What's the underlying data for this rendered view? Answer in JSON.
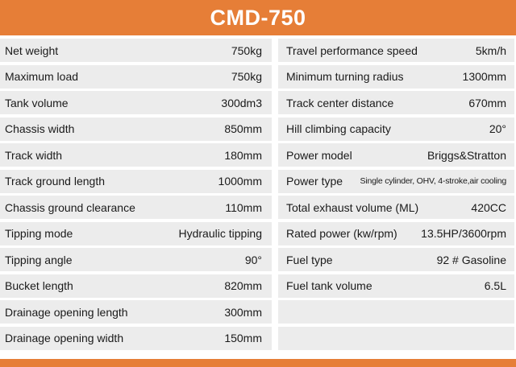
{
  "title": "CMD-750",
  "left_specs": [
    {
      "label": "Net weight",
      "value": "750kg"
    },
    {
      "label": "Maximum load",
      "value": "750kg"
    },
    {
      "label": "Tank volume",
      "value": "300dm3"
    },
    {
      "label": "Chassis width",
      "value": "850mm"
    },
    {
      "label": "Track width",
      "value": "180mm"
    },
    {
      "label": "Track ground length",
      "value": "1000mm"
    },
    {
      "label": "Chassis ground clearance",
      "value": "110mm"
    },
    {
      "label": "Tipping mode",
      "value": "Hydraulic tipping"
    },
    {
      "label": "Tipping angle",
      "value": "90°"
    },
    {
      "label": "Bucket length",
      "value": "820mm"
    },
    {
      "label": "Drainage opening length",
      "value": "300mm"
    },
    {
      "label": "Drainage opening width",
      "value": "150mm"
    }
  ],
  "right_specs": [
    {
      "label": "Travel performance speed",
      "value": "5km/h"
    },
    {
      "label": "Minimum turning radius",
      "value": "1300mm"
    },
    {
      "label": "Track center distance",
      "value": "670mm"
    },
    {
      "label": "Hill climbing capacity",
      "value": "20°"
    },
    {
      "label": "Power model",
      "value": "Briggs&Stratton"
    },
    {
      "label": "Power type",
      "value": "Single cylinder, OHV, 4-stroke,air cooling"
    },
    {
      "label": "Total exhaust volume (ML)",
      "value": "420CC"
    },
    {
      "label": "Rated power (kw/rpm)",
      "value": "13.5HP/3600rpm"
    },
    {
      "label": "Fuel type",
      "value": "92 # Gasoline"
    },
    {
      "label": "Fuel tank volume",
      "value": "6.5L"
    },
    {
      "label": "",
      "value": ""
    },
    {
      "label": "",
      "value": ""
    }
  ],
  "colors": {
    "accent": "#e67e37",
    "row_bg": "#ececec"
  }
}
